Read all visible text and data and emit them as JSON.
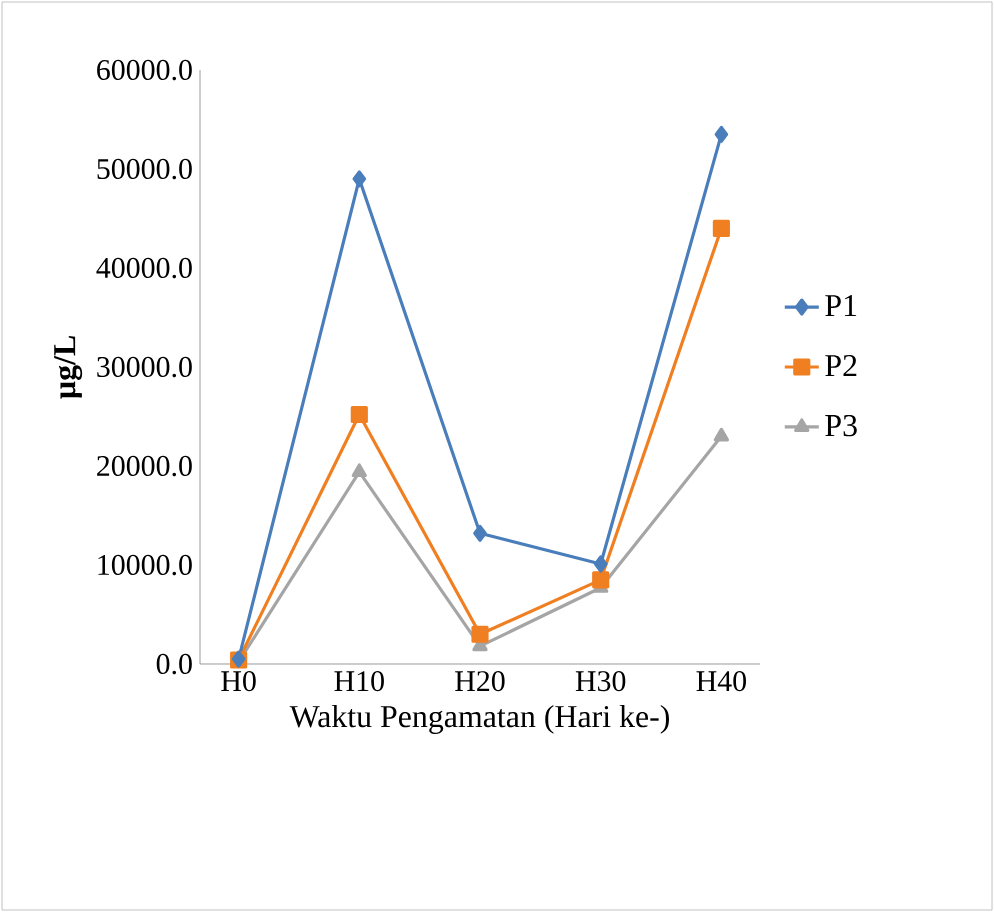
{
  "chart_data": {
    "type": "line",
    "xlabel": "Waktu Pengamatan (Hari ke-)",
    "ylabel": "µg/L",
    "categories": [
      "H0",
      "H10",
      "H20",
      "H30",
      "H40"
    ],
    "series": [
      {
        "name": "P1",
        "color": "#4a7ebb",
        "marker": "diamond",
        "values": [
          500,
          49000,
          13200,
          10100,
          53500
        ]
      },
      {
        "name": "P2",
        "color": "#f07f21",
        "marker": "square",
        "values": [
          400,
          25200,
          3000,
          8500,
          44000
        ]
      },
      {
        "name": "P3",
        "color": "#a5a5a5",
        "marker": "triangle",
        "values": [
          200,
          19400,
          1800,
          7700,
          23000
        ]
      }
    ],
    "ylim": [
      0,
      60000
    ],
    "yticks": [
      {
        "value": 0,
        "label": "0.0"
      },
      {
        "value": 10000,
        "label": "10000.0"
      },
      {
        "value": 20000,
        "label": "20000.0"
      },
      {
        "value": 30000,
        "label": "30000.0"
      },
      {
        "value": 40000,
        "label": "40000.0"
      },
      {
        "value": 50000,
        "label": "50000.0"
      },
      {
        "value": 60000,
        "label": "60000.0"
      }
    ],
    "grid": false,
    "legend": "right",
    "line_style": "solid"
  }
}
